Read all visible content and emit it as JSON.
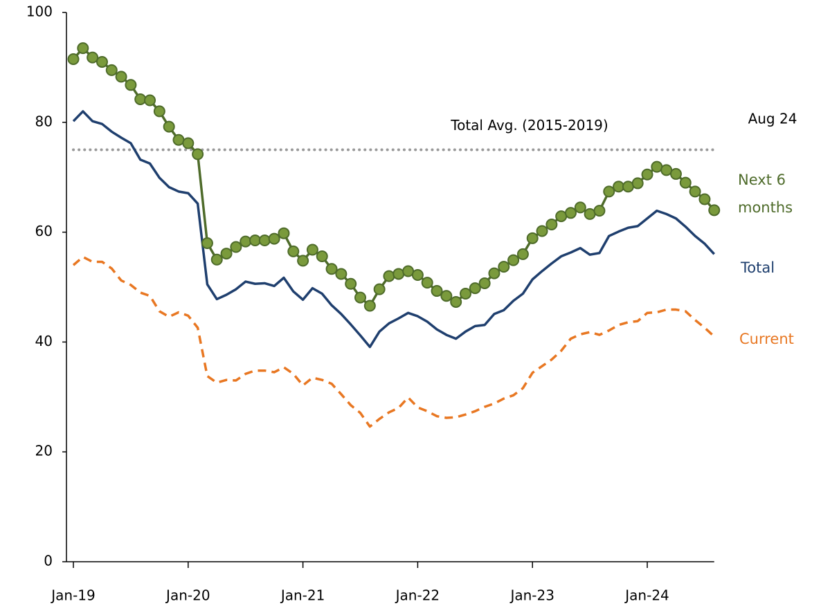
{
  "chart_data": {
    "type": "line",
    "categories": [
      "Jan-19",
      null,
      null,
      null,
      null,
      null,
      null,
      null,
      null,
      null,
      null,
      null,
      "Jan-20",
      null,
      null,
      null,
      null,
      null,
      null,
      null,
      null,
      null,
      null,
      null,
      "Jan-21",
      null,
      null,
      null,
      null,
      null,
      null,
      null,
      null,
      null,
      null,
      null,
      "Jan-22",
      null,
      null,
      null,
      null,
      null,
      null,
      null,
      null,
      null,
      null,
      null,
      "Jan-23",
      null,
      null,
      null,
      null,
      null,
      null,
      null,
      null,
      null,
      null,
      null,
      "Jan-24",
      null,
      null,
      null,
      null,
      null,
      null,
      null
    ],
    "series": [
      {
        "name": "Next 6 months",
        "color": "#4e6b2a",
        "marker_color": "#7a9a3c",
        "markers": true,
        "dashed": false,
        "values": [
          91.5,
          93.5,
          91.8,
          91,
          89.5,
          88.3,
          86.8,
          84.2,
          84,
          82,
          79.2,
          76.8,
          76.2,
          74.2,
          58,
          55,
          56.1,
          57.3,
          58.3,
          58.5,
          58.5,
          58.8,
          59.8,
          56.5,
          54.8,
          56.8,
          55.6,
          53.3,
          52.4,
          50.6,
          48.1,
          46.6,
          49.6,
          52,
          52.4,
          52.9,
          52.2,
          50.8,
          49.3,
          48.4,
          47.3,
          48.8,
          49.8,
          50.7,
          52.5,
          53.7,
          54.9,
          56,
          58.9,
          60.2,
          61.4,
          62.9,
          63.5,
          64.5,
          63.3,
          63.9,
          67.4,
          68.3,
          68.3,
          68.9,
          70.5,
          71.9,
          71.3,
          70.6,
          69,
          67.4,
          66,
          64
        ]
      },
      {
        "name": "Total",
        "color": "#1f3f6e",
        "markers": false,
        "dashed": false,
        "values": [
          80.2,
          82,
          80.2,
          79.7,
          78.3,
          77.2,
          76.2,
          73.2,
          72.5,
          69.9,
          68.2,
          67.4,
          67.1,
          65.2,
          50.5,
          47.8,
          48.6,
          49.6,
          51,
          50.6,
          50.7,
          50.2,
          51.7,
          49.2,
          47.7,
          49.8,
          48.8,
          46.7,
          45.1,
          43.2,
          41.2,
          39.1,
          41.9,
          43.4,
          44.3,
          45.3,
          44.7,
          43.7,
          42.3,
          41.3,
          40.6,
          41.9,
          42.9,
          43.1,
          45.1,
          45.8,
          47.5,
          48.8,
          51.4,
          52.9,
          54.3,
          55.6,
          56.3,
          57.1,
          55.9,
          56.2,
          59.3,
          60.1,
          60.8,
          61.1,
          62.5,
          63.9,
          63.3,
          62.5,
          61,
          59.3,
          57.9,
          56
        ]
      },
      {
        "name": "Current",
        "color": "#e87722",
        "markers": false,
        "dashed": true,
        "values": [
          54,
          55.5,
          54.6,
          54.6,
          53.4,
          51.2,
          50.4,
          49,
          48.4,
          45.6,
          44.6,
          45.4,
          44.8,
          42.6,
          33.8,
          32.6,
          33.1,
          33,
          34.2,
          34.8,
          34.8,
          34.5,
          35.4,
          34.2,
          32.1,
          33.5,
          33.1,
          32.4,
          30.5,
          28.5,
          27.1,
          24.6,
          26,
          27.2,
          28,
          29.9,
          28.1,
          27.4,
          26.5,
          26.2,
          26.3,
          26.8,
          27.4,
          28.2,
          28.8,
          29.7,
          30.3,
          31.6,
          34.4,
          35.6,
          36.8,
          38.4,
          40.6,
          41.4,
          41.8,
          41.3,
          42.1,
          43.1,
          43.6,
          43.8,
          45.3,
          45.4,
          45.9,
          45.9,
          45.6,
          44,
          42.6,
          41
        ]
      }
    ],
    "reference_lines": [
      {
        "value": 75,
        "label": "Total Avg. (2015-2019)",
        "color": "#999999"
      }
    ],
    "annotations": [
      "Aug 24"
    ],
    "ylim": [
      0,
      100
    ],
    "yticks": [
      0,
      20,
      40,
      60,
      80,
      100
    ]
  }
}
